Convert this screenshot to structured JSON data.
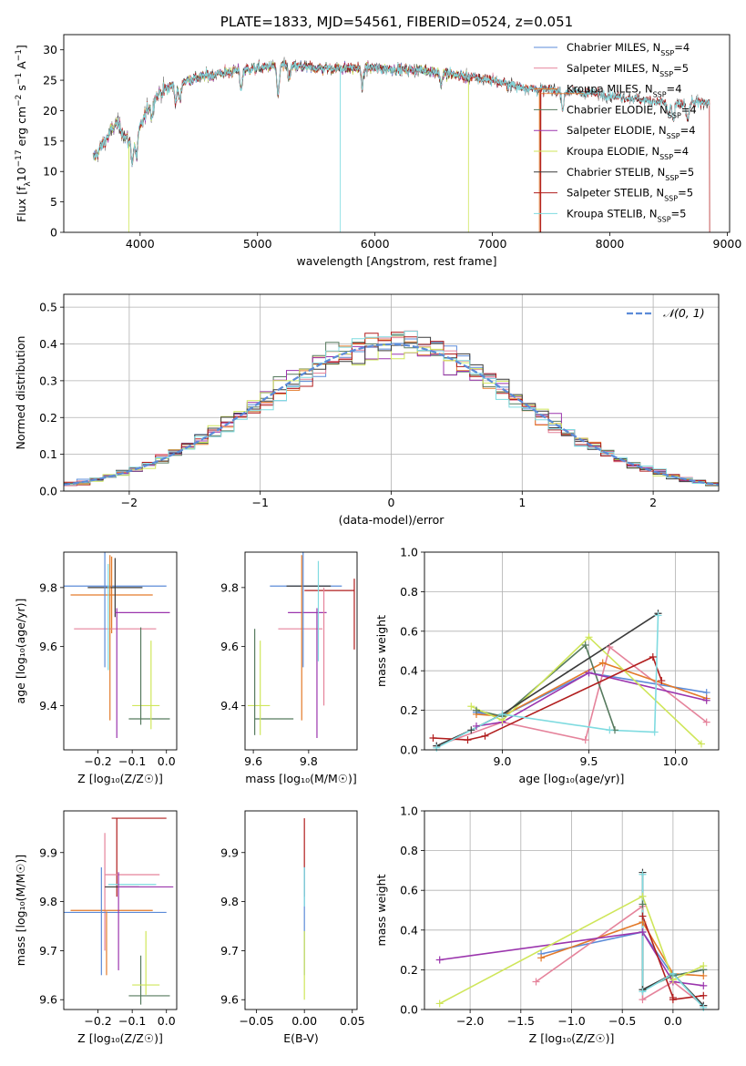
{
  "colors": {
    "chab_miles": "#5b8bd8",
    "salp_miles": "#e5839b",
    "krou_miles": "#e37a2a",
    "chab_elodie": "#567a5e",
    "salp_elodie": "#9b35ad",
    "krou_elodie": "#cfe65a",
    "chab_stelib": "#3a3a3a",
    "salp_stelib": "#b11d1d",
    "krou_stelib": "#7fdbe0",
    "normal": "#5b8bd8",
    "grid": "#b0b0b0"
  },
  "chart_data": [
    {
      "id": "spectrum",
      "type": "line",
      "title": "PLATE=1833, MJD=54561, FIBERID=0524, z=0.051",
      "xlabel": "wavelength [Angstrom, rest frame]",
      "ylabel_parts": [
        "Flux [f",
        "λ",
        "10",
        "−17",
        " erg cm",
        "−2",
        " s",
        "−1",
        " A",
        "−1",
        "]"
      ],
      "xlim": [
        3350,
        9020
      ],
      "ylim": [
        0,
        32.5
      ],
      "xticks": [
        4000,
        5000,
        6000,
        7000,
        8000,
        9000
      ],
      "yticks": [
        0,
        5,
        10,
        15,
        20,
        25,
        30
      ],
      "grid": false,
      "legend_position": "top-right",
      "legend": [
        {
          "name": "Chabrier MILES",
          "nssp": "4",
          "color_key": "chab_miles"
        },
        {
          "name": "Salpeter MILES",
          "nssp": "5",
          "color_key": "salp_miles"
        },
        {
          "name": "Kroupa MILES",
          "nssp": "4",
          "color_key": "krou_miles"
        },
        {
          "name": "Chabrier ELODIE",
          "nssp": "4",
          "color_key": "chab_elodie"
        },
        {
          "name": "Salpeter ELODIE",
          "nssp": "4",
          "color_key": "salp_elodie"
        },
        {
          "name": "Kroupa ELODIE",
          "nssp": "4",
          "color_key": "krou_elodie"
        },
        {
          "name": "Chabrier STELIB",
          "nssp": "5",
          "color_key": "chab_stelib"
        },
        {
          "name": "Salpeter STELIB",
          "nssp": "5",
          "color_key": "salp_stelib"
        },
        {
          "name": "Kroupa STELIB",
          "nssp": "5",
          "color_key": "krou_stelib"
        }
      ],
      "continuum": [
        [
          3600,
          12
        ],
        [
          3700,
          15
        ],
        [
          3800,
          18
        ],
        [
          3900,
          15
        ],
        [
          4000,
          17
        ],
        [
          4100,
          22
        ],
        [
          4300,
          24.5
        ],
        [
          4500,
          25.5
        ],
        [
          4800,
          26.5
        ],
        [
          5000,
          27
        ],
        [
          5200,
          27.5
        ],
        [
          5500,
          27
        ],
        [
          6000,
          27
        ],
        [
          6500,
          26.5
        ],
        [
          6800,
          25.5
        ],
        [
          7000,
          25
        ],
        [
          7200,
          24
        ],
        [
          7400,
          23.5
        ],
        [
          7800,
          23
        ],
        [
          8200,
          22
        ],
        [
          8600,
          21
        ],
        [
          8800,
          21.5
        ]
      ],
      "features": [
        [
          3934,
          -4
        ],
        [
          3968,
          -4
        ],
        [
          4101,
          -3
        ],
        [
          4304,
          -3
        ],
        [
          4340,
          -3
        ],
        [
          4861,
          -3
        ],
        [
          5175,
          -5
        ],
        [
          5270,
          -2
        ],
        [
          5893,
          -3
        ],
        [
          6563,
          -2
        ],
        [
          7600,
          -3
        ],
        [
          8500,
          -2
        ],
        [
          8542,
          -3
        ],
        [
          8662,
          -3
        ]
      ],
      "dropouts": [
        {
          "color_key": "krou_elodie",
          "x": 3905
        },
        {
          "color_key": "krou_stelib",
          "x": 5705
        },
        {
          "color_key": "krou_elodie",
          "x": 6795
        },
        {
          "color_key": "krou_miles",
          "x": 7400
        },
        {
          "color_key": "salp_stelib",
          "x": 7410
        }
      ],
      "miles_end": 7410,
      "elodie_end": 6800
    },
    {
      "id": "residuals",
      "type": "histogram",
      "xlabel": "(data-model)/error",
      "ylabel": "Normed distribution",
      "xlim": [
        -2.5,
        2.5
      ],
      "ylim": [
        0,
        0.535
      ],
      "xticks": [
        -2,
        -1,
        0,
        1,
        2
      ],
      "yticks": [
        0.0,
        0.1,
        0.2,
        0.3,
        0.4,
        0.5
      ],
      "grid": true,
      "legend_position": "top-right",
      "normal_label": "𝒩(0, 1)",
      "bin_width": 0.1
    },
    {
      "id": "age_vs_Z",
      "type": "errorbar",
      "xlabel": "Z [log₁₀(Z/Z☉)]",
      "ylabel": "age  [log₁₀(age/yr)]",
      "xlim": [
        -0.3,
        0.03
      ],
      "ylim": [
        9.25,
        9.92
      ],
      "xticks": [
        -0.2,
        -0.1,
        0.0
      ],
      "yticks": [
        9.4,
        9.6,
        9.8
      ],
      "points": [
        {
          "c": "chab_miles",
          "x": -0.15,
          "xe": 0.15,
          "y": 9.805,
          "ye": 0.0
        },
        {
          "c": "krou_miles",
          "x": -0.16,
          "xe": 0.12,
          "y": 9.775,
          "ye": 0.13
        },
        {
          "c": "chab_stelib",
          "x": -0.15,
          "xe": 0.08,
          "y": 9.8,
          "ye": 0.1
        },
        {
          "c": "salp_elodie",
          "x": -0.07,
          "xe": 0.08,
          "y": 9.715,
          "ye": 0.0
        },
        {
          "c": "salp_miles",
          "x": -0.15,
          "xe": 0.12,
          "y": 9.66,
          "ye": 0.0
        },
        {
          "c": "chab_miles",
          "x": -0.18,
          "xe": 0.0,
          "y": 9.73,
          "ye": 0.2
        },
        {
          "c": "krou_stelib",
          "x": -0.17,
          "xe": 0.0,
          "y": 9.7,
          "ye": 0.18
        },
        {
          "c": "salp_elodie",
          "x": -0.145,
          "xe": 0.0,
          "y": 9.51,
          "ye": 0.22
        },
        {
          "c": "salp_stelib",
          "x": -0.15,
          "xe": 0.0,
          "y": 9.8,
          "ye": 0.0
        },
        {
          "c": "krou_elodie",
          "x": -0.06,
          "xe": 0.04,
          "y": 9.4,
          "ye": 0.0
        },
        {
          "c": "chab_elodie",
          "x": -0.05,
          "xe": 0.06,
          "y": 9.355,
          "ye": 0.0
        },
        {
          "c": "chab_elodie",
          "x": -0.075,
          "xe": 0.0,
          "y": 9.5,
          "ye": 0.165
        },
        {
          "c": "krou_elodie",
          "x": -0.045,
          "xe": 0.0,
          "y": 9.47,
          "ye": 0.15
        },
        {
          "c": "krou_miles",
          "x": -0.165,
          "xe": 0.0,
          "y": 9.63,
          "ye": 0.28
        }
      ]
    },
    {
      "id": "age_vs_mass",
      "type": "errorbar",
      "xlabel": "mass [log₁₀(M/M☉)]",
      "ylabel": "",
      "xlim": [
        9.57,
        9.975
      ],
      "ylim": [
        9.25,
        9.92
      ],
      "xticks": [
        9.6,
        9.8
      ],
      "yticks": [
        9.4,
        9.6,
        9.8
      ],
      "points": [
        {
          "c": "chab_miles",
          "x": 9.79,
          "xe": 0.13,
          "y": 9.805,
          "ye": 0.0
        },
        {
          "c": "salp_stelib",
          "x": 9.875,
          "xe": 0.09,
          "y": 9.79,
          "ye": 0.0
        },
        {
          "c": "salp_stelib",
          "x": 9.965,
          "xe": 0.0,
          "y": 9.71,
          "ye": 0.12
        },
        {
          "c": "chab_stelib",
          "x": 9.8,
          "xe": 0.08,
          "y": 9.805,
          "ye": 0.0
        },
        {
          "c": "salp_elodie",
          "x": 9.795,
          "xe": 0.07,
          "y": 9.715,
          "ye": 0.0
        },
        {
          "c": "salp_miles",
          "x": 9.77,
          "xe": 0.08,
          "y": 9.66,
          "ye": 0.0
        },
        {
          "c": "krou_miles",
          "x": 9.775,
          "xe": 0.0,
          "y": 9.63,
          "ye": 0.28
        },
        {
          "c": "chab_miles",
          "x": 9.78,
          "xe": 0.0,
          "y": 9.73,
          "ye": 0.2
        },
        {
          "c": "salp_elodie",
          "x": 9.83,
          "xe": 0.0,
          "y": 9.51,
          "ye": 0.22
        },
        {
          "c": "krou_stelib",
          "x": 9.835,
          "xe": 0.0,
          "y": 9.72,
          "ye": 0.17
        },
        {
          "c": "salp_miles",
          "x": 9.855,
          "xe": 0.0,
          "y": 9.6,
          "ye": 0.2
        },
        {
          "c": "krou_elodie",
          "x": 9.62,
          "xe": 0.04,
          "y": 9.4,
          "ye": 0.0
        },
        {
          "c": "chab_elodie",
          "x": 9.675,
          "xe": 0.07,
          "y": 9.355,
          "ye": 0.0
        },
        {
          "c": "chab_elodie",
          "x": 9.605,
          "xe": 0.0,
          "y": 9.48,
          "ye": 0.18
        },
        {
          "c": "krou_elodie",
          "x": 9.625,
          "xe": 0.0,
          "y": 9.46,
          "ye": 0.16
        }
      ]
    },
    {
      "id": "weight_vs_age",
      "type": "line",
      "xlabel": "age  [log₁₀(age/yr)]",
      "ylabel": "mass weight",
      "xlim": [
        8.55,
        10.25
      ],
      "ylim": [
        0,
        1.0
      ],
      "xticks": [
        9.0,
        9.5,
        10.0
      ],
      "yticks": [
        0.0,
        0.2,
        0.4,
        0.6,
        0.8,
        1.0
      ],
      "grid": true,
      "series": [
        {
          "c": "chab_miles",
          "x": [
            8.85,
            9.0,
            9.5,
            10.18
          ],
          "y": [
            0.19,
            0.17,
            0.39,
            0.29
          ]
        },
        {
          "c": "salp_miles",
          "x": [
            8.62,
            9.0,
            9.48,
            9.62,
            10.18
          ],
          "y": [
            0.02,
            0.14,
            0.05,
            0.52,
            0.14
          ]
        },
        {
          "c": "krou_miles",
          "x": [
            8.85,
            9.0,
            9.58,
            10.18
          ],
          "y": [
            0.18,
            0.17,
            0.44,
            0.26
          ]
        },
        {
          "c": "chab_elodie",
          "x": [
            8.85,
            9.0,
            9.48,
            9.65
          ],
          "y": [
            0.2,
            0.17,
            0.53,
            0.1
          ]
        },
        {
          "c": "salp_elodie",
          "x": [
            8.85,
            9.0,
            9.5,
            10.18
          ],
          "y": [
            0.12,
            0.14,
            0.39,
            0.25
          ]
        },
        {
          "c": "krou_elodie",
          "x": [
            8.82,
            9.0,
            9.5,
            10.15
          ],
          "y": [
            0.22,
            0.15,
            0.57,
            0.03
          ]
        },
        {
          "c": "chab_stelib",
          "x": [
            8.62,
            8.82,
            9.0,
            9.9
          ],
          "y": [
            0.02,
            0.1,
            0.18,
            0.69
          ]
        },
        {
          "c": "salp_stelib",
          "x": [
            8.6,
            8.8,
            8.9,
            9.87,
            9.92
          ],
          "y": [
            0.06,
            0.05,
            0.07,
            0.47,
            0.35
          ]
        },
        {
          "c": "krou_stelib",
          "x": [
            8.62,
            9.0,
            9.62,
            9.88,
            9.9
          ],
          "y": [
            0.01,
            0.18,
            0.1,
            0.09,
            0.68
          ]
        }
      ]
    },
    {
      "id": "mass_vs_Z",
      "type": "errorbar",
      "xlabel": "Z [log₁₀(Z/Z☉)]",
      "ylabel": "mass [log₁₀(M/M☉)]",
      "xlim": [
        -0.3,
        0.03
      ],
      "ylim": [
        9.58,
        9.985
      ],
      "xticks": [
        -0.2,
        -0.1,
        0.0
      ],
      "yticks": [
        9.6,
        9.7,
        9.8,
        9.9
      ],
      "points": [
        {
          "c": "salp_stelib",
          "x": -0.08,
          "xe": 0.08,
          "y": 9.97,
          "ye": 0.0
        },
        {
          "c": "salp_stelib",
          "x": -0.145,
          "xe": 0.0,
          "y": 9.89,
          "ye": 0.08
        },
        {
          "c": "salp_miles",
          "x": -0.18,
          "xe": 0.0,
          "y": 9.82,
          "ye": 0.12
        },
        {
          "c": "salp_miles",
          "x": -0.1,
          "xe": 0.08,
          "y": 9.855,
          "ye": 0.0
        },
        {
          "c": "chab_stelib",
          "x": -0.13,
          "xe": 0.05,
          "y": 9.83,
          "ye": 0.0
        },
        {
          "c": "krou_stelib",
          "x": -0.1,
          "xe": 0.07,
          "y": 9.835,
          "ye": 0.0
        },
        {
          "c": "salp_elodie",
          "x": -0.06,
          "xe": 0.08,
          "y": 9.83,
          "ye": 0.0
        },
        {
          "c": "krou_miles",
          "x": -0.16,
          "xe": 0.12,
          "y": 9.782,
          "ye": 0.0
        },
        {
          "c": "chab_miles",
          "x": -0.15,
          "xe": 0.15,
          "y": 9.778,
          "ye": 0.0
        },
        {
          "c": "salp_elodie",
          "x": -0.14,
          "xe": 0.0,
          "y": 9.76,
          "ye": 0.1
        },
        {
          "c": "chab_miles",
          "x": -0.19,
          "xe": 0.0,
          "y": 9.76,
          "ye": 0.11
        },
        {
          "c": "krou_miles",
          "x": -0.175,
          "xe": 0.0,
          "y": 9.715,
          "ye": 0.065
        },
        {
          "c": "chab_elodie",
          "x": -0.075,
          "xe": 0.0,
          "y": 9.64,
          "ye": 0.05
        },
        {
          "c": "krou_elodie",
          "x": -0.06,
          "xe": 0.0,
          "y": 9.675,
          "ye": 0.065
        },
        {
          "c": "krou_elodie",
          "x": -0.06,
          "xe": 0.04,
          "y": 9.63,
          "ye": 0.0
        },
        {
          "c": "chab_elodie",
          "x": -0.05,
          "xe": 0.06,
          "y": 9.608,
          "ye": 0.0
        }
      ]
    },
    {
      "id": "mass_vs_EBV",
      "type": "errorbar",
      "xlabel": "E(B-V)",
      "ylabel": "",
      "xlim": [
        -0.062,
        0.055
      ],
      "ylim": [
        9.58,
        9.985
      ],
      "xticks": [
        -0.05,
        0.0,
        0.05
      ],
      "yticks": [
        9.6,
        9.7,
        9.8,
        9.9
      ],
      "points": [
        {
          "c": "salp_stelib",
          "x": 0.0,
          "xe": 0.0,
          "y": 9.89,
          "ye": 0.08
        },
        {
          "c": "chab_miles",
          "x": 0.0,
          "xe": 0.0,
          "y": 9.76,
          "ye": 0.11
        },
        {
          "c": "krou_elodie",
          "x": 0.0,
          "xe": 0.0,
          "y": 9.67,
          "ye": 0.07
        },
        {
          "c": "krou_stelib",
          "x": 0.0,
          "xe": 0.0,
          "y": 9.83,
          "ye": 0.04
        }
      ]
    },
    {
      "id": "weight_vs_Z",
      "type": "line",
      "xlabel": "Z [log₁₀(Z/Z☉)]",
      "ylabel": "mass weight",
      "xlim": [
        -2.45,
        0.45
      ],
      "ylim": [
        0,
        1.0
      ],
      "xticks": [
        -2.0,
        -1.5,
        -1.0,
        -0.5,
        0.0
      ],
      "yticks": [
        0.0,
        0.2,
        0.4,
        0.6,
        0.8,
        1.0
      ],
      "grid": true,
      "series": [
        {
          "c": "chab_miles",
          "x": [
            -1.3,
            -0.3,
            0.0,
            0.3
          ],
          "y": [
            0.28,
            0.39,
            0.17,
            0.2
          ]
        },
        {
          "c": "salp_miles",
          "x": [
            -1.35,
            -0.3,
            -0.3,
            0.0,
            0.3
          ],
          "y": [
            0.14,
            0.52,
            0.05,
            0.14,
            0.02
          ]
        },
        {
          "c": "krou_miles",
          "x": [
            -1.3,
            -0.3,
            0.0,
            0.3
          ],
          "y": [
            0.26,
            0.44,
            0.18,
            0.17
          ]
        },
        {
          "c": "chab_elodie",
          "x": [
            -0.3,
            -0.3,
            0.0,
            0.3
          ],
          "y": [
            0.53,
            0.1,
            0.17,
            0.2
          ]
        },
        {
          "c": "salp_elodie",
          "x": [
            -2.3,
            -0.3,
            0.0,
            0.3
          ],
          "y": [
            0.25,
            0.39,
            0.14,
            0.12
          ]
        },
        {
          "c": "krou_elodie",
          "x": [
            -2.3,
            -0.3,
            0.0,
            0.3
          ],
          "y": [
            0.03,
            0.57,
            0.15,
            0.22
          ]
        },
        {
          "c": "chab_stelib",
          "x": [
            -0.3,
            -0.3,
            0.0,
            0.3
          ],
          "y": [
            0.69,
            0.1,
            0.18,
            0.02
          ]
        },
        {
          "c": "salp_stelib",
          "x": [
            -0.3,
            0.0,
            0.0,
            0.3
          ],
          "y": [
            0.47,
            0.06,
            0.05,
            0.07
          ]
        },
        {
          "c": "krou_stelib",
          "x": [
            -0.3,
            -0.3,
            0.0,
            0.3
          ],
          "y": [
            0.68,
            0.09,
            0.18,
            0.01
          ]
        }
      ]
    }
  ]
}
